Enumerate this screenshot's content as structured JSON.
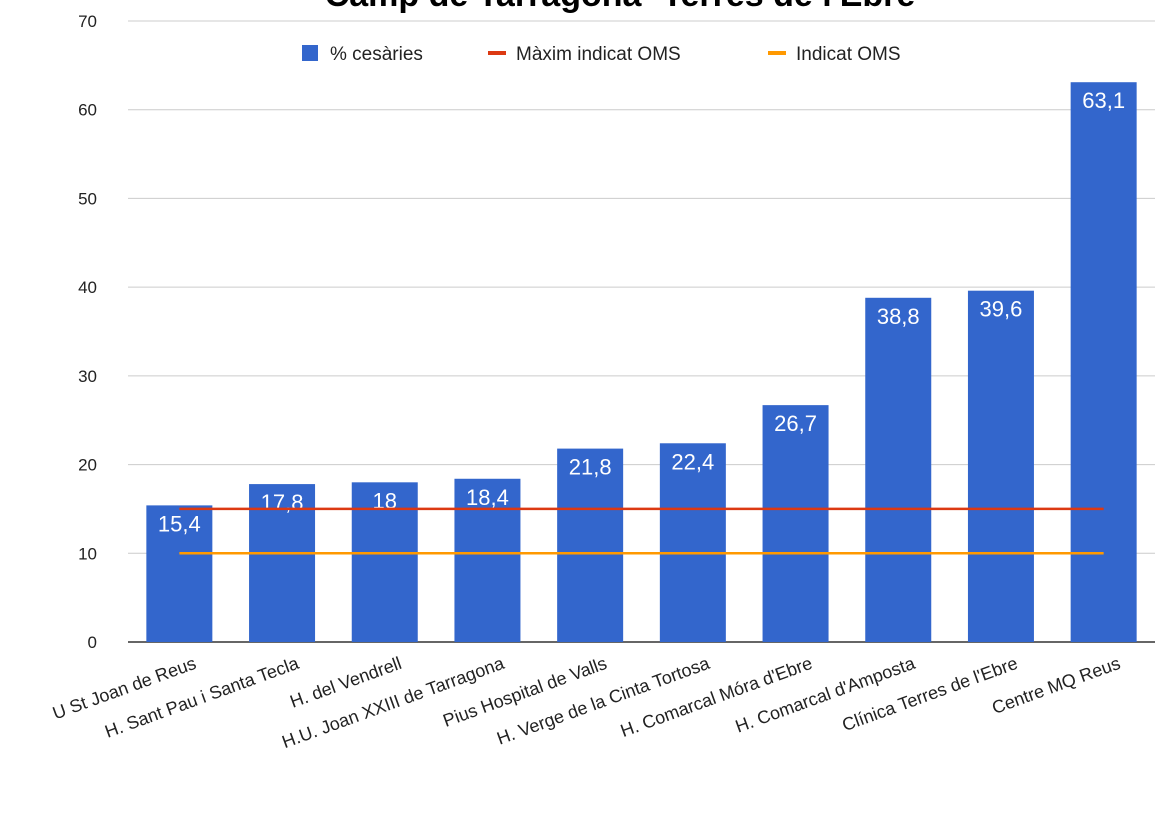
{
  "chart_data": {
    "type": "bar",
    "title": "Camp de Tarragona- Terres de l'Ebre",
    "categories": [
      "U St Joan de Reus",
      "H. Sant Pau i Santa Tecla",
      "H. del Vendrell",
      "H.U. Joan XXIII de Tarragona",
      "Pius Hospital de Valls",
      "H. Verge de la Cinta Tortosa",
      "H. Comarcal Móra d'Ebre",
      "H. Comarcal d'Amposta",
      "Clínica Terres de l'Ebre",
      "Centre MQ Reus"
    ],
    "series": [
      {
        "name": "% cesàries",
        "values": [
          15.4,
          17.8,
          18,
          18.4,
          21.8,
          22.4,
          26.7,
          38.8,
          39.6,
          63.1
        ],
        "labels": [
          "15,4",
          "17,8",
          "18",
          "18,4",
          "21,8",
          "22,4",
          "26,7",
          "38,8",
          "39,6",
          "63,1"
        ],
        "color": "#3366cc",
        "kind": "bar"
      },
      {
        "name": "Màxim indicat OMS",
        "value": 15,
        "color": "#dc3912",
        "kind": "line"
      },
      {
        "name": "Indicat OMS",
        "value": 10,
        "color": "#ff9900",
        "kind": "line"
      }
    ],
    "yticks": [
      "0",
      "10",
      "20",
      "30",
      "40",
      "50",
      "60",
      "70"
    ],
    "ylim": [
      0,
      70
    ],
    "grid": true,
    "legend_position": "top"
  }
}
